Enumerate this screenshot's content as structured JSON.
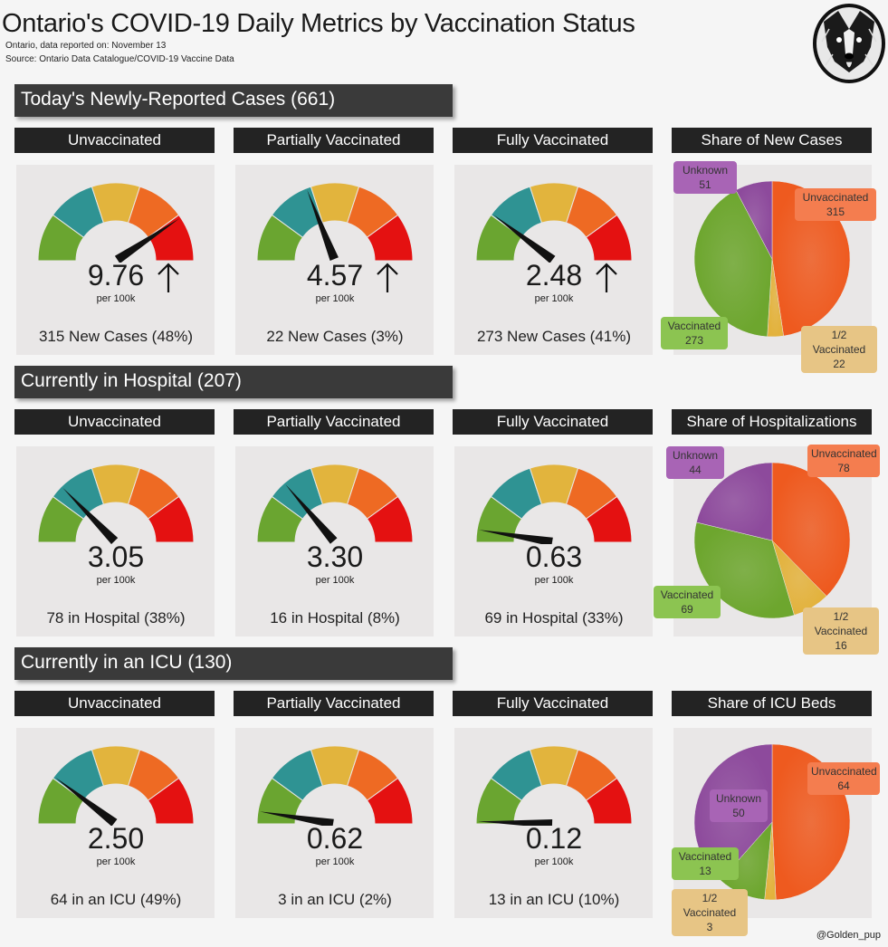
{
  "title": "Ontario's COVID-19 Daily Metrics by Vaccination Status",
  "subtitle_date": "Ontario, data reported on: November 13",
  "subtitle_source": "Source: Ontario Data Catalogue/COVID-19 Vaccine Data",
  "credit": "@Golden_pup",
  "colors": {
    "unvaccinated": "#ee5a1f",
    "partial": "#e3b23c",
    "vaccinated": "#6da62e",
    "unknown": "#8d4a9c",
    "gauge": [
      "#6aa530",
      "#2f9393",
      "#e2b43d",
      "#ee6a23",
      "#e41111"
    ]
  },
  "per_unit": "per 100k",
  "gauge_max": 12,
  "sections": [
    {
      "title": "Today's Newly-Reported Cases (661)",
      "headers": [
        "Unvaccinated",
        "Partially Vaccinated",
        "Fully Vaccinated",
        "Share of New Cases"
      ],
      "gauges": [
        {
          "value": "9.76",
          "rate": 9.76,
          "arrow": "up",
          "count": "315 New Cases (48%)"
        },
        {
          "value": "4.57",
          "rate": 4.57,
          "arrow": "up",
          "count": "22 New Cases (3%)"
        },
        {
          "value": "2.48",
          "rate": 2.48,
          "arrow": "up",
          "count": "273 New Cases (41%)"
        }
      ]
    },
    {
      "title": "Currently in Hospital (207)",
      "headers": [
        "Unvaccinated",
        "Partially Vaccinated",
        "Fully Vaccinated",
        "Share of Hospitalizations"
      ],
      "gauges": [
        {
          "value": "3.05",
          "rate": 3.05,
          "arrow": "",
          "count": "78 in Hospital (38%)"
        },
        {
          "value": "3.30",
          "rate": 3.3,
          "arrow": "",
          "count": "16 in Hospital (8%)"
        },
        {
          "value": "0.63",
          "rate": 0.63,
          "arrow": "",
          "count": "69 in Hospital (33%)"
        }
      ]
    },
    {
      "title": "Currently in an ICU (130)",
      "headers": [
        "Unvaccinated",
        "Partially Vaccinated",
        "Fully Vaccinated",
        "Share of ICU Beds"
      ],
      "gauges": [
        {
          "value": "2.50",
          "rate": 2.5,
          "arrow": "",
          "count": "64 in an ICU (49%)"
        },
        {
          "value": "0.62",
          "rate": 0.62,
          "arrow": "",
          "count": "3 in an ICU (2%)"
        },
        {
          "value": "0.12",
          "rate": 0.12,
          "arrow": "",
          "count": "13 in an ICU (10%)"
        }
      ]
    }
  ],
  "chart_data": [
    {
      "type": "pie",
      "title": "Share of New Cases",
      "slices": [
        {
          "label": "Unvaccinated",
          "value": 315
        },
        {
          "label": "1/2 Vaccinated",
          "value": 22
        },
        {
          "label": "Vaccinated",
          "value": 273
        },
        {
          "label": "Unknown",
          "value": 51
        }
      ]
    },
    {
      "type": "pie",
      "title": "Share of Hospitalizations",
      "slices": [
        {
          "label": "Unvaccinated",
          "value": 78
        },
        {
          "label": "1/2 Vaccinated",
          "value": 16
        },
        {
          "label": "Vaccinated",
          "value": 69
        },
        {
          "label": "Unknown",
          "value": 44
        }
      ]
    },
    {
      "type": "pie",
      "title": "Share of ICU Beds",
      "slices": [
        {
          "label": "Unvaccinated",
          "value": 64
        },
        {
          "label": "1/2 Vaccinated",
          "value": 3
        },
        {
          "label": "Vaccinated",
          "value": 13
        },
        {
          "label": "Unknown",
          "value": 50
        }
      ]
    }
  ]
}
